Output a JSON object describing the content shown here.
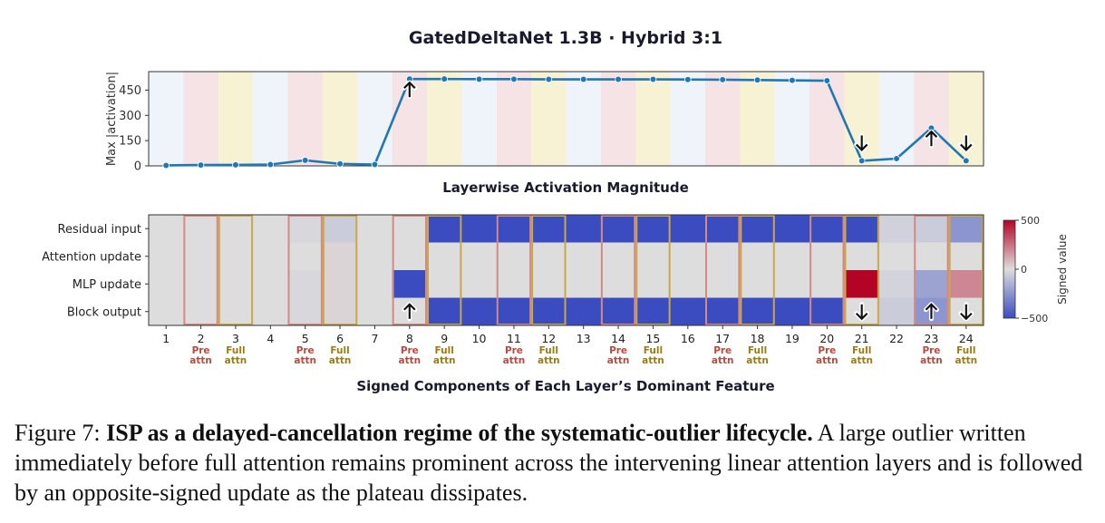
{
  "chart_data": [
    {
      "type": "line",
      "title": "GatedDeltaNet 1.3B · Hybrid 3:1",
      "subtitle": "Layerwise Activation Magnitude",
      "xlabel": "",
      "ylabel": "Max |activation|",
      "x": [
        1,
        2,
        3,
        4,
        5,
        6,
        7,
        8,
        9,
        10,
        11,
        12,
        13,
        14,
        15,
        16,
        17,
        18,
        19,
        20,
        21,
        22,
        23,
        24
      ],
      "values": [
        3,
        5,
        6,
        8,
        33,
        12,
        8,
        516,
        516,
        515,
        515,
        514,
        514,
        514,
        514,
        513,
        512,
        510,
        508,
        506,
        30,
        43,
        225,
        30
      ],
      "ylim": [
        0,
        560
      ],
      "yticks": [
        0,
        150,
        300,
        450
      ],
      "grid": false,
      "line_color": "#1f77b4",
      "up_arrow_layers": [
        8,
        23
      ],
      "down_arrow_layers": [
        21,
        24
      ],
      "band_pattern": [
        "linear",
        "pre",
        "full"
      ],
      "band_colors": {
        "linear": "#eef4fa",
        "pre": "#f5e3e5",
        "full": "#f7f2d3"
      }
    },
    {
      "type": "heatmap",
      "title": "Signed Components of Each Layer’s Dominant Feature",
      "rows": [
        "Residual input",
        "Attention update",
        "MLP update",
        "Block output"
      ],
      "columns": [
        1,
        2,
        3,
        4,
        5,
        6,
        7,
        8,
        9,
        10,
        11,
        12,
        13,
        14,
        15,
        16,
        17,
        18,
        19,
        20,
        21,
        22,
        23,
        24
      ],
      "layer_types": [
        "",
        "Pre attn",
        "Full attn",
        "",
        "Pre attn",
        "Full attn",
        "",
        "Pre attn",
        "Full attn",
        "",
        "Pre attn",
        "Full attn",
        "",
        "Pre attn",
        "Full attn",
        "",
        "Pre attn",
        "Full attn",
        "",
        "Pre attn",
        "Full attn",
        "",
        "Pre attn",
        "Full attn"
      ],
      "values": [
        [
          0,
          0,
          0,
          0,
          -20,
          -60,
          0,
          0,
          -500,
          -500,
          -500,
          -500,
          -500,
          -500,
          -500,
          -500,
          -500,
          -500,
          -500,
          -500,
          -500,
          -40,
          -60,
          -250
        ],
        [
          0,
          0,
          0,
          0,
          0,
          20,
          0,
          0,
          0,
          0,
          0,
          0,
          0,
          0,
          0,
          0,
          0,
          0,
          0,
          0,
          0,
          0,
          0,
          0
        ],
        [
          0,
          0,
          0,
          0,
          -20,
          20,
          0,
          -500,
          0,
          0,
          0,
          0,
          0,
          0,
          0,
          0,
          0,
          0,
          0,
          0,
          500,
          -30,
          -200,
          200
        ],
        [
          0,
          0,
          0,
          0,
          -20,
          20,
          0,
          0,
          -500,
          -500,
          -500,
          -500,
          -500,
          -500,
          -500,
          -500,
          -500,
          -500,
          -500,
          -500,
          0,
          -60,
          -250,
          0
        ]
      ],
      "up_arrow_cells": [
        [
          3,
          8
        ],
        [
          3,
          23
        ]
      ],
      "down_arrow_cells": [
        [
          3,
          21
        ],
        [
          3,
          24
        ]
      ],
      "colorbar": {
        "label": "Signed value",
        "min": -500,
        "max": 500,
        "ticks": [
          500,
          0,
          -500
        ]
      },
      "type_colors": {
        "pre": "#b84a3e",
        "full": "#9a7d12"
      },
      "border_colors": {
        "pre": "#d48a84",
        "full": "#c9a74a"
      }
    }
  ],
  "caption": {
    "label": "Figure 7:",
    "bold_title": "ISP as a delayed-cancellation regime of the systematic-outlier lifecycle.",
    "text": "A large outlier written immediately before full attention remains prominent across the intervening linear attention layers and is followed by an opposite-signed update as the plateau dissipates."
  }
}
